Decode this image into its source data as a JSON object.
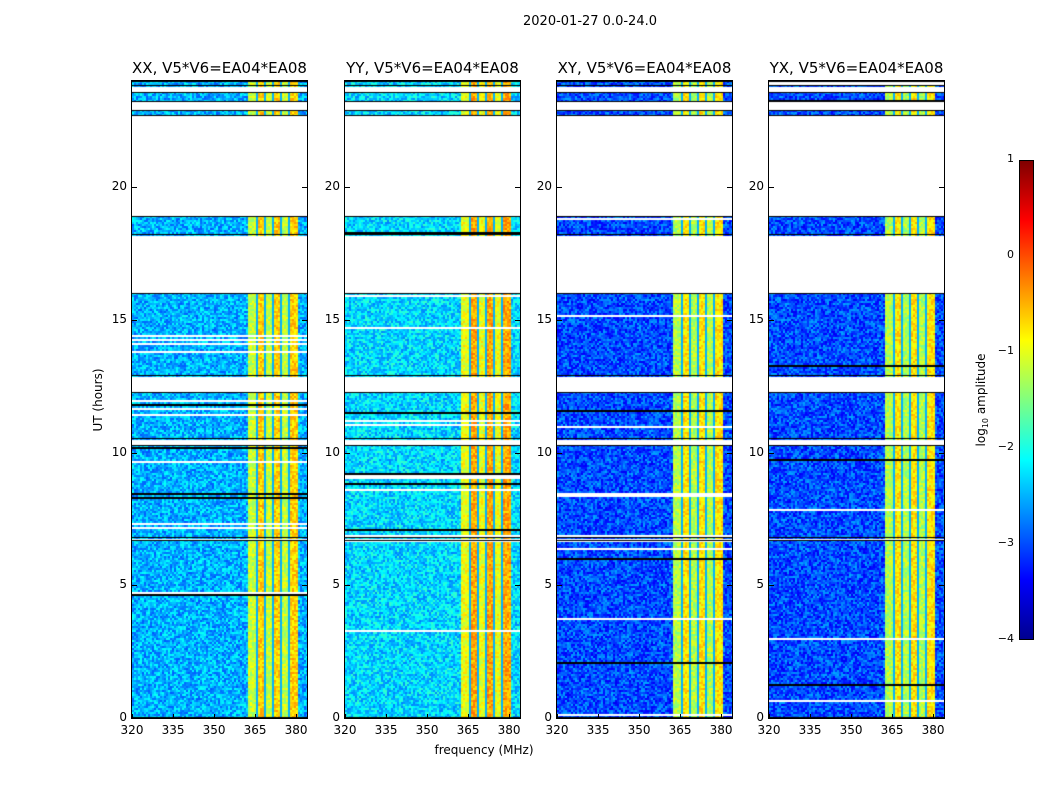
{
  "chart_data": {
    "type": "heatmap",
    "suptitle": "2020-01-27 0.0-24.0",
    "xlabel": "frequency (MHz)",
    "ylabel": "UT (hours)",
    "xlim": [
      320,
      384
    ],
    "ylim": [
      0,
      24
    ],
    "xticks": [
      "320",
      "335",
      "350",
      "365",
      "380"
    ],
    "xtick_values": [
      320,
      335,
      350,
      365,
      380
    ],
    "yticks": [
      "0",
      "5",
      "10",
      "15",
      "20"
    ],
    "ytick_values": [
      0,
      5,
      10,
      15,
      20
    ],
    "time_segments_with_data": [
      [
        0,
        6.7
      ],
      [
        6.8,
        10.3
      ],
      [
        10.5,
        12.3
      ],
      [
        12.9,
        16.0
      ],
      [
        18.2,
        18.9
      ],
      [
        22.7,
        22.9
      ],
      [
        23.2,
        23.6
      ],
      [
        23.8,
        24.0
      ]
    ],
    "rfi_band_mhz": [
      362,
      380
    ],
    "panels": [
      {
        "title": "XX, V5*V6=EA04*EA08",
        "offband_log_amp": -2.5,
        "inband_log_amp": -1.0
      },
      {
        "title": "YY, V5*V6=EA04*EA08",
        "offband_log_amp": -2.3,
        "inband_log_amp": -0.8
      },
      {
        "title": "XY, V5*V6=EA04*EA08",
        "offband_log_amp": -3.0,
        "inband_log_amp": -1.1
      },
      {
        "title": "YX, V5*V6=EA04*EA08",
        "offband_log_amp": -3.0,
        "inband_log_amp": -1.1
      }
    ],
    "colorbar": {
      "label_prefix": "log",
      "label_sub": "10",
      "label_suffix": " amplitude",
      "range": [
        -4,
        1
      ],
      "ticks": [
        "1",
        "0",
        "−1",
        "−2",
        "−3",
        "−4"
      ],
      "tick_values": [
        1,
        0,
        -1,
        -2,
        -3,
        -4
      ],
      "colormap": "jet"
    }
  }
}
